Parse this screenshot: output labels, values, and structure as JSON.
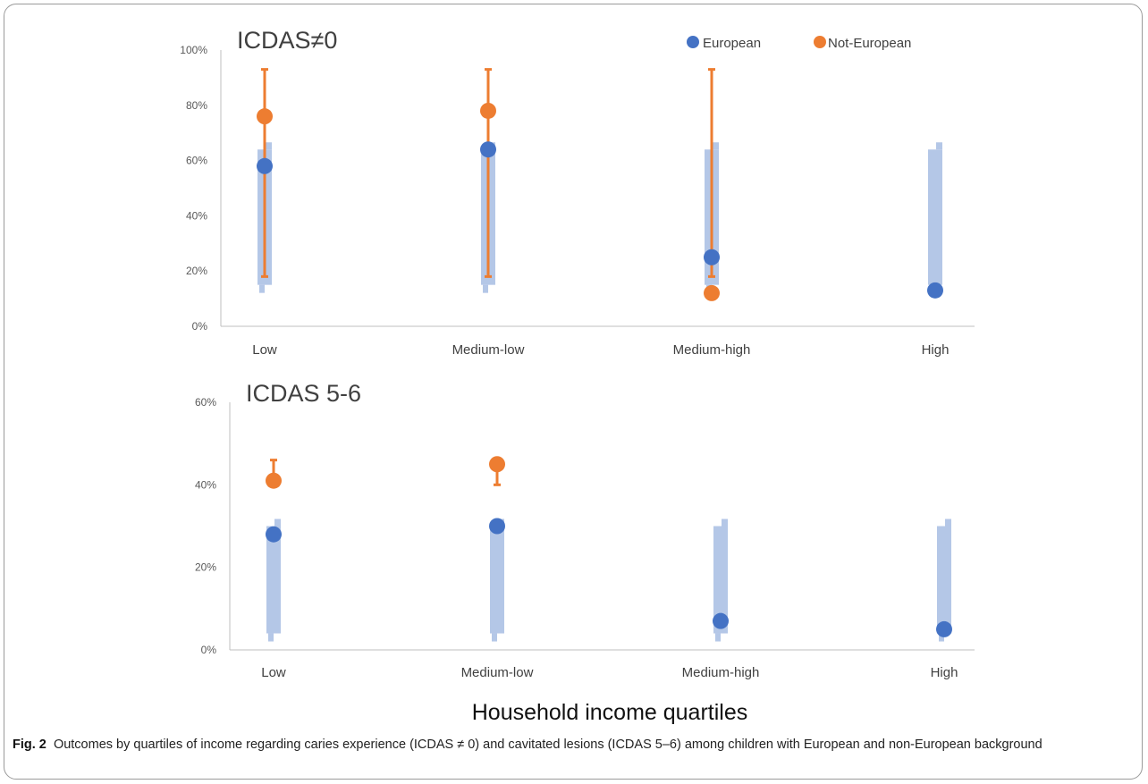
{
  "colors": {
    "european": "#4472C4",
    "not_european": "#ED7D31",
    "band": "#B4C7E7",
    "axis": "#BFBFBF"
  },
  "legend": {
    "european": "European",
    "not_european": "Not-European"
  },
  "x_axis_title": "Household income quartiles",
  "caption": {
    "label": "Fig. 2",
    "text": "Outcomes by quartiles of income regarding caries experience (ICDAS ≠ 0) and cavitated lesions (ICDAS 5–6) among children with European and non-European background"
  },
  "chart_data": [
    {
      "type": "scatter",
      "title": "ICDAS≠0",
      "categories": [
        "Low",
        "Medium-low",
        "Medium-high",
        "High"
      ],
      "ylim": [
        0,
        100
      ],
      "y_ticks": [
        0,
        20,
        40,
        60,
        80,
        100
      ],
      "y_tick_labels": [
        "0%",
        "20%",
        "40%",
        "60%",
        "80%",
        "100%"
      ],
      "legend_position": "top-right",
      "series": [
        {
          "name": "European",
          "values": [
            58,
            64,
            25,
            13
          ],
          "error_low": [
            15,
            15,
            15,
            15
          ],
          "error_high": [
            64,
            64,
            64,
            64
          ],
          "error_style": "band"
        },
        {
          "name": "Not-European",
          "values": [
            76,
            78,
            12,
            null
          ],
          "error_low": [
            18,
            18,
            18,
            null
          ],
          "error_high": [
            93,
            93,
            93,
            null
          ],
          "error_style": "bar"
        }
      ]
    },
    {
      "type": "scatter",
      "title": "ICDAS 5-6",
      "categories": [
        "Low",
        "Medium-low",
        "Medium-high",
        "High"
      ],
      "ylim": [
        0,
        60
      ],
      "y_ticks": [
        0,
        20,
        40,
        60
      ],
      "y_tick_labels": [
        "0%",
        "20%",
        "40%",
        "60%"
      ],
      "series": [
        {
          "name": "European",
          "values": [
            28,
            30,
            7,
            5
          ],
          "error_low": [
            4,
            4,
            4,
            4
          ],
          "error_high": [
            30,
            30,
            30,
            30
          ],
          "error_style": "band"
        },
        {
          "name": "Not-European",
          "values": [
            41,
            45,
            null,
            null
          ],
          "error_low": [
            null,
            40,
            null,
            null
          ],
          "error_high": [
            46,
            null,
            null,
            null
          ],
          "error_style": "bar"
        }
      ]
    }
  ]
}
